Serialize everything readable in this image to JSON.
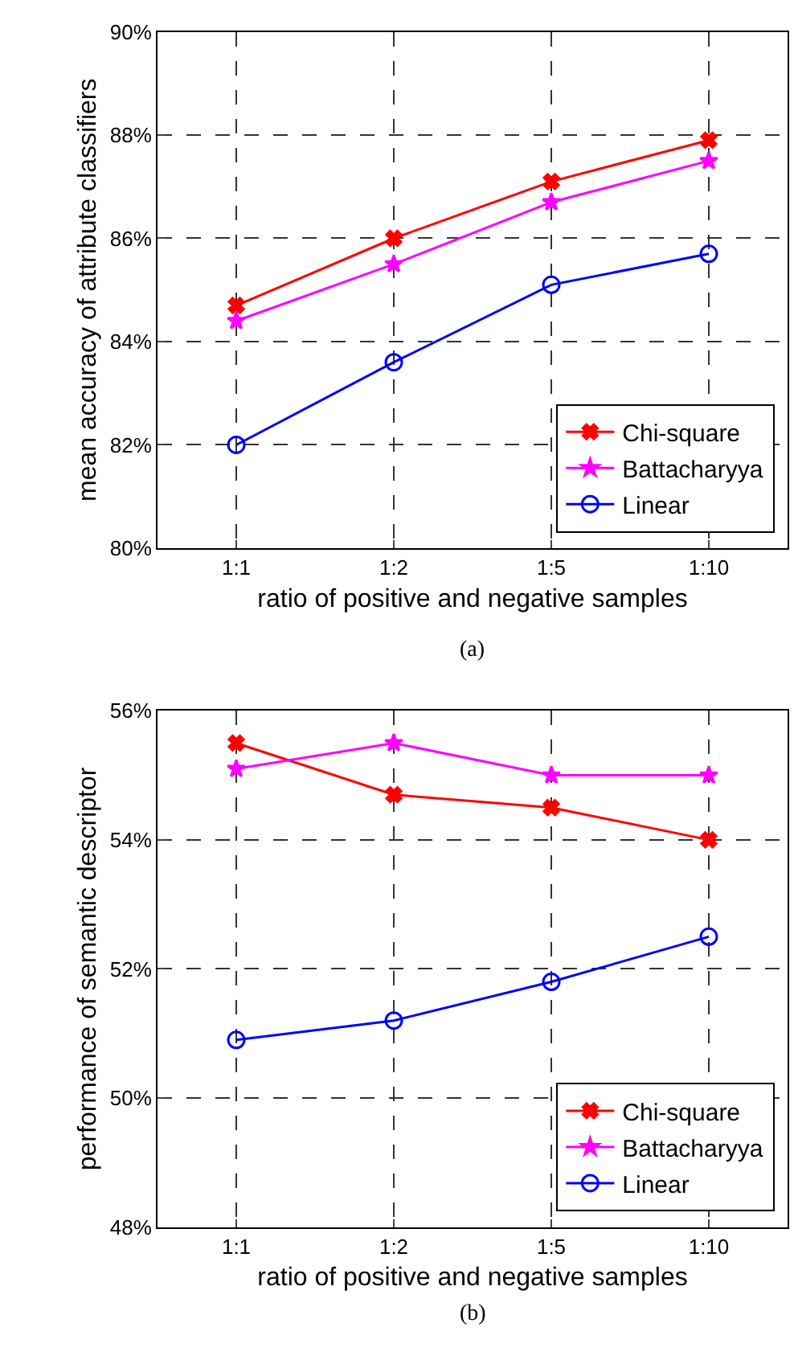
{
  "chart_data": [
    {
      "type": "line",
      "xlabel": "ratio of positive and negative samples",
      "ylabel": "mean accuracy of attribute classifiers",
      "categories": [
        "1:1",
        "1:2",
        "1:5",
        "1:10"
      ],
      "series": [
        {
          "name": "Chi-square",
          "color": "#ff0000",
          "marker": "cross",
          "values": [
            84.7,
            86.0,
            87.1,
            87.9
          ]
        },
        {
          "name": "Battacharyya",
          "color": "#ff00ff",
          "marker": "star",
          "values": [
            84.4,
            85.5,
            86.7,
            87.5
          ]
        },
        {
          "name": "Linear",
          "color": "#0000ff",
          "marker": "circle",
          "values": [
            82.0,
            83.6,
            85.1,
            85.7
          ]
        }
      ],
      "ylim": [
        80,
        90
      ],
      "yticks": [
        {
          "value": 80,
          "label": "80%"
        },
        {
          "value": 82,
          "label": "82%"
        },
        {
          "value": 84,
          "label": "84%"
        },
        {
          "value": 86,
          "label": "86%"
        },
        {
          "value": 88,
          "label": "88%"
        },
        {
          "value": 90,
          "label": "90%"
        }
      ],
      "grid": true,
      "legend": "bottom right",
      "line_style": "solid",
      "annotations": [
        "(a)"
      ]
    },
    {
      "type": "line",
      "xlabel": "ratio of positive and negative samples",
      "ylabel": "performance of semantic descriptor",
      "categories": [
        "1:1",
        "1:2",
        "1:5",
        "1:10"
      ],
      "series": [
        {
          "name": "Chi-square",
          "color": "#ff0000",
          "marker": "cross",
          "values": [
            55.5,
            54.7,
            54.5,
            54.0
          ]
        },
        {
          "name": "Battacharyya",
          "color": "#ff00ff",
          "marker": "star",
          "values": [
            55.1,
            55.5,
            55.0,
            55.0
          ]
        },
        {
          "name": "Linear",
          "color": "#0000ff",
          "marker": "circle",
          "values": [
            50.9,
            51.2,
            51.8,
            52.5
          ]
        }
      ],
      "ylim": [
        48,
        56
      ],
      "yticks": [
        {
          "value": 48,
          "label": "48%"
        },
        {
          "value": 50,
          "label": "50%"
        },
        {
          "value": 52,
          "label": "52%"
        },
        {
          "value": 54,
          "label": "54%"
        },
        {
          "value": 56,
          "label": "56%"
        }
      ],
      "grid": true,
      "legend": "bottom right",
      "line_style": "solid",
      "annotations": [
        "(b)"
      ]
    }
  ]
}
